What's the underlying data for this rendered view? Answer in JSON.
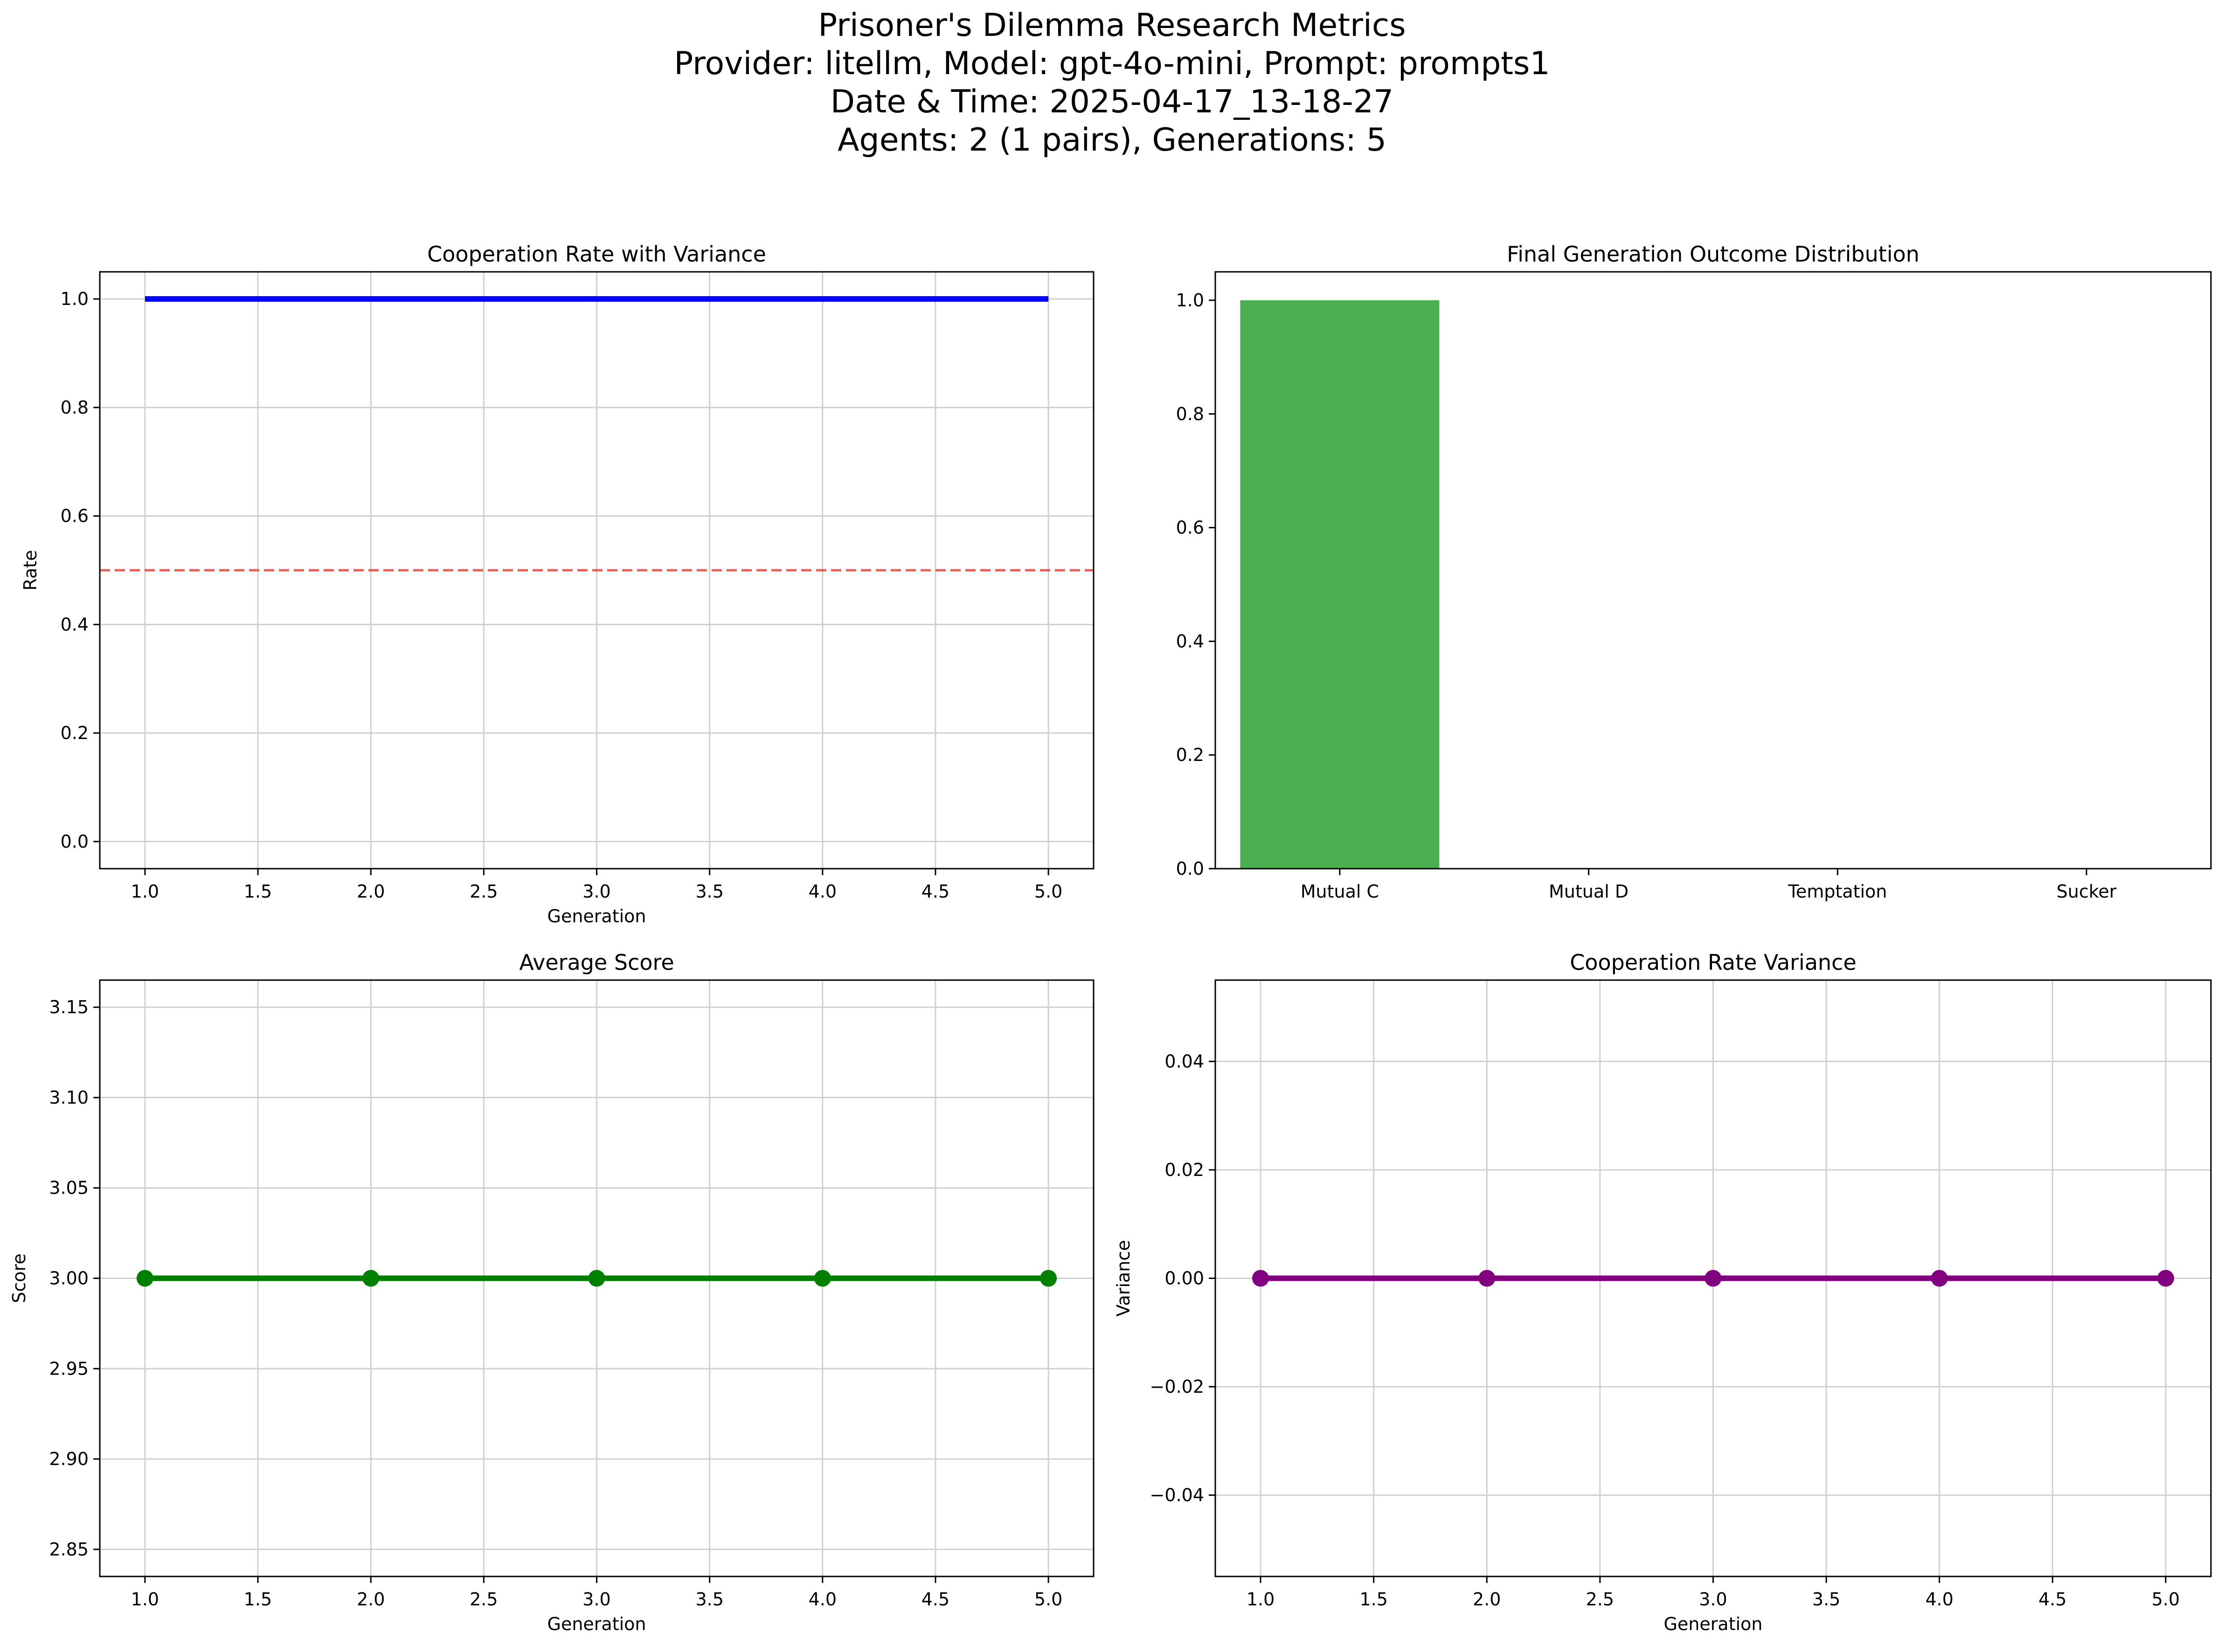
{
  "suptitle": {
    "line1": "Prisoner's Dilemma Research Metrics",
    "line2": "Provider: litellm, Model: gpt-4o-mini, Prompt: prompts1",
    "line3": "Date & Time: 2025-04-17_13-18-27",
    "line4": "Agents: 2 (1 pairs), Generations: 5"
  },
  "chart_data": [
    {
      "type": "line",
      "title": "Cooperation Rate with Variance",
      "xlabel": "Generation",
      "ylabel": "Rate",
      "xlim": [
        0.8,
        5.2
      ],
      "ylim": [
        -0.05,
        1.05
      ],
      "xticks": [
        "1.0",
        "1.5",
        "2.0",
        "2.5",
        "3.0",
        "3.5",
        "4.0",
        "4.5",
        "5.0"
      ],
      "yticks": [
        "0.0",
        "0.2",
        "0.4",
        "0.6",
        "0.8",
        "1.0"
      ],
      "grid": true,
      "x": [
        1,
        2,
        3,
        4,
        5
      ],
      "series": [
        {
          "values": [
            1.0,
            1.0,
            1.0,
            1.0,
            1.0
          ],
          "color": "#0000ff",
          "markers": false
        }
      ],
      "reference_line": {
        "y": 0.5,
        "color": "#e8413a",
        "style": "dashed"
      }
    },
    {
      "type": "bar",
      "title": "Final Generation Outcome Distribution",
      "categories": [
        "Mutual C",
        "Mutual D",
        "Temptation",
        "Sucker"
      ],
      "values": [
        1.0,
        0.0,
        0.0,
        0.0
      ],
      "color": "#4caf50",
      "ylim": [
        0,
        1.05
      ],
      "yticks": [
        "0.0",
        "0.2",
        "0.4",
        "0.6",
        "0.8",
        "1.0"
      ],
      "grid": false
    },
    {
      "type": "line",
      "title": "Average Score",
      "xlabel": "Generation",
      "ylabel": "Score",
      "xlim": [
        0.8,
        5.2
      ],
      "ylim": [
        2.835,
        3.165
      ],
      "xticks": [
        "1.0",
        "1.5",
        "2.0",
        "2.5",
        "3.0",
        "3.5",
        "4.0",
        "4.5",
        "5.0"
      ],
      "yticks": [
        "2.85",
        "2.90",
        "2.95",
        "3.00",
        "3.05",
        "3.10",
        "3.15"
      ],
      "grid": true,
      "x": [
        1,
        2,
        3,
        4,
        5
      ],
      "series": [
        {
          "values": [
            3.0,
            3.0,
            3.0,
            3.0,
            3.0
          ],
          "color": "#008000",
          "markers": true
        }
      ]
    },
    {
      "type": "line",
      "title": "Cooperation Rate Variance",
      "xlabel": "Generation",
      "ylabel": "Variance",
      "xlim": [
        0.8,
        5.2
      ],
      "ylim": [
        -0.055,
        0.055
      ],
      "xticks": [
        "1.0",
        "1.5",
        "2.0",
        "2.5",
        "3.0",
        "3.5",
        "4.0",
        "4.5",
        "5.0"
      ],
      "yticks": [
        "−0.04",
        "−0.02",
        "0.00",
        "0.02",
        "0.04"
      ],
      "grid": true,
      "x": [
        1,
        2,
        3,
        4,
        5
      ],
      "series": [
        {
          "values": [
            0.0,
            0.0,
            0.0,
            0.0,
            0.0
          ],
          "color": "#800080",
          "markers": true
        }
      ]
    }
  ]
}
